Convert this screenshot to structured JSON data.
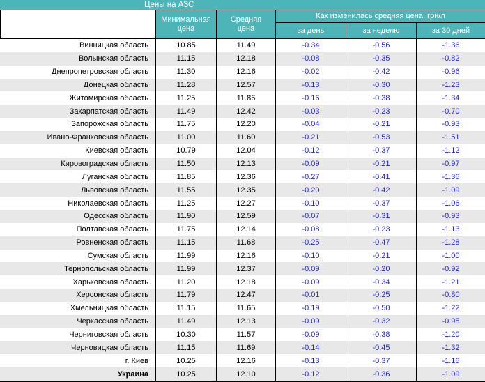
{
  "colors": {
    "header_teal": "#4db4b7",
    "stripe_gray": "#e8e8e8",
    "change_blue": "#1f1fe8"
  },
  "chart_data": {
    "type": "table",
    "title": "Цены на АЗС",
    "header": {
      "region": "",
      "min_price": "Минимальная\nцена",
      "avg_price": "Средняя\nцена",
      "change_group": "Как изменилась средняя цена, грн/л",
      "per_day": "за день",
      "per_week": "за неделю",
      "per_30d": "за 30 дней"
    },
    "rows": [
      [
        "Винницкая область",
        "10.85",
        "11.49",
        "-0.34",
        "-0.56",
        "-1.36"
      ],
      [
        "Волынская область",
        "11.15",
        "12.18",
        "-0.08",
        "-0.35",
        "-0.82"
      ],
      [
        "Днепропетровская область",
        "11.30",
        "12.16",
        "-0.02",
        "-0.42",
        "-0.96"
      ],
      [
        "Донецкая область",
        "11.28",
        "12.57",
        "-0.13",
        "-0.30",
        "-1.23"
      ],
      [
        "Житомирская область",
        "11.25",
        "11.86",
        "-0.16",
        "-0.38",
        "-1.34"
      ],
      [
        "Закарпатская область",
        "11.49",
        "12.42",
        "-0.03",
        "-0.23",
        "-0.70"
      ],
      [
        "Запорожская область",
        "11.75",
        "12.20",
        "-0.04",
        "-0.21",
        "-0.93"
      ],
      [
        "Ивано-Франковская область",
        "11.00",
        "11.60",
        "-0.21",
        "-0.53",
        "-1.51"
      ],
      [
        "Киевская область",
        "10.79",
        "12.04",
        "-0.12",
        "-0.37",
        "-1.12"
      ],
      [
        "Кировоградская область",
        "11.50",
        "12.13",
        "-0.09",
        "-0.21",
        "-0.97"
      ],
      [
        "Луганская область",
        "11.85",
        "12.36",
        "-0.27",
        "-0.41",
        "-1.36"
      ],
      [
        "Львовская область",
        "11.55",
        "12.35",
        "-0.20",
        "-0.42",
        "-1.09"
      ],
      [
        "Николаевская область",
        "11.25",
        "12.27",
        "-0.10",
        "-0.37",
        "-1.06"
      ],
      [
        "Одесская область",
        "11.90",
        "12.59",
        "-0.07",
        "-0.31",
        "-0.93"
      ],
      [
        "Полтавская область",
        "11.75",
        "12.14",
        "-0.08",
        "-0.23",
        "-1.13"
      ],
      [
        "Ровненская область",
        "11.15",
        "11.68",
        "-0.25",
        "-0.47",
        "-1.28"
      ],
      [
        "Сумская область",
        "11.99",
        "12.16",
        "-0.10",
        "-0.21",
        "-1.00"
      ],
      [
        "Тернопольская область",
        "11.99",
        "12.37",
        "-0.09",
        "-0.20",
        "-0.92"
      ],
      [
        "Харьковская область",
        "11.20",
        "12.18",
        "-0.09",
        "-0.34",
        "-1.21"
      ],
      [
        "Херсонская область",
        "11.79",
        "12.47",
        "-0.01",
        "-0.25",
        "-0.80"
      ],
      [
        "Хмельницкая область",
        "11.15",
        "11.65",
        "-0.19",
        "-0.50",
        "-1.22"
      ],
      [
        "Черкасская область",
        "11.49",
        "12.13",
        "-0.09",
        "-0.32",
        "-0.95"
      ],
      [
        "Черниговская область",
        "10.30",
        "11.57",
        "-0.09",
        "-0.38",
        "-1.20"
      ],
      [
        "Черновицкая область",
        "11.15",
        "11.69",
        "-0.14",
        "-0.45",
        "-1.32"
      ],
      [
        "г. Киев",
        "10.25",
        "12.16",
        "-0.13",
        "-0.37",
        "-1.16"
      ],
      [
        "Украина",
        "10.25",
        "12.10",
        "-0.12",
        "-0.36",
        "-1.09"
      ]
    ]
  }
}
